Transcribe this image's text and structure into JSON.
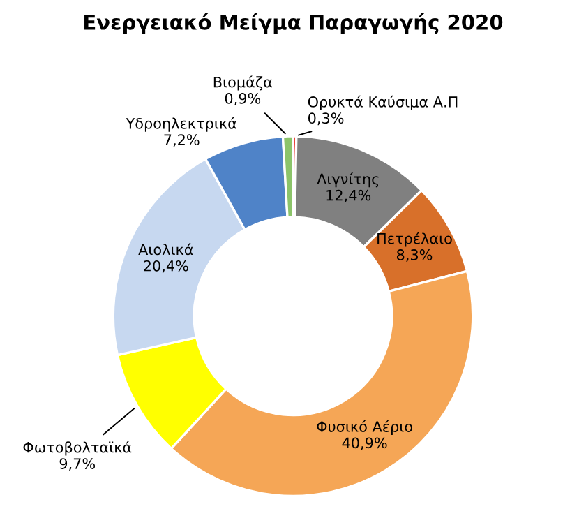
{
  "chart_data": {
    "type": "donut",
    "title": "Ενεργειακό Μείγμα Παραγωγής 2020",
    "categories": [
      "Ορυκτά Καύσιμα Α.Π",
      "Λιγνίτης",
      "Πετρέλαιο",
      "Φυσικό Αέριο",
      "Φωτοβολταϊκά",
      "Αιολικά",
      "Υδροηλεκτρικά",
      "Βιομάζα"
    ],
    "values": [
      0.3,
      12.4,
      8.3,
      40.9,
      9.7,
      20.4,
      7.2,
      0.9
    ],
    "value_labels": [
      "0,3%",
      "12,4%",
      "8,3%",
      "40,9%",
      "9,7%",
      "20,4%",
      "7,2%",
      "0,9%"
    ],
    "colors": [
      "#e8413a",
      "#808080",
      "#d8702a",
      "#f5a656",
      "#ffff00",
      "#c7d8f0",
      "#4f83c8",
      "#8cc46a"
    ],
    "legend": false
  }
}
